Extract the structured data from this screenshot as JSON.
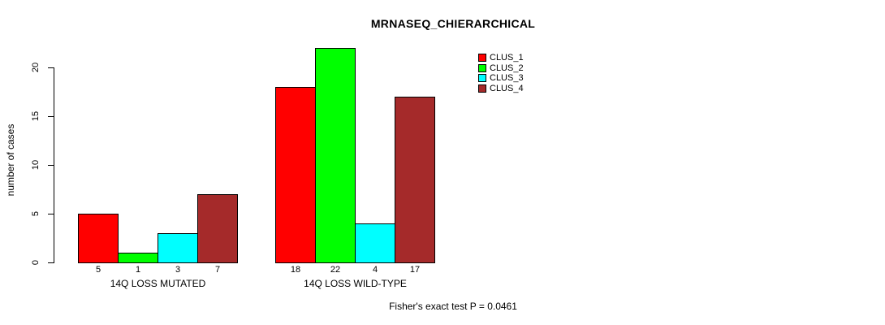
{
  "chart_data": {
    "type": "bar",
    "title": "MRNASEQ_CHIERARCHICAL",
    "ylabel": "number of cases",
    "annotation": "Fisher's exact test P = 0.0461",
    "categories": [
      "14Q LOSS MUTATED",
      "14Q LOSS WILD-TYPE"
    ],
    "series": [
      {
        "name": "CLUS_1",
        "color": "#FF0000",
        "values": [
          5,
          18
        ]
      },
      {
        "name": "CLUS_2",
        "color": "#00FF00",
        "values": [
          1,
          22
        ]
      },
      {
        "name": "CLUS_3",
        "color": "#00FFFF",
        "values": [
          3,
          4
        ]
      },
      {
        "name": "CLUS_4",
        "color": "#A52A2A",
        "values": [
          7,
          17
        ]
      }
    ],
    "bar_value_labels": [
      [
        5,
        1,
        3,
        7
      ],
      [
        18,
        22,
        4,
        17
      ]
    ],
    "yticks": [
      0,
      5,
      10,
      15,
      20
    ],
    "ylim": [
      0,
      22
    ],
    "grid": false,
    "legend_position": "top-right",
    "axis_color": "#000000",
    "background_color": "#FFFFFF"
  }
}
